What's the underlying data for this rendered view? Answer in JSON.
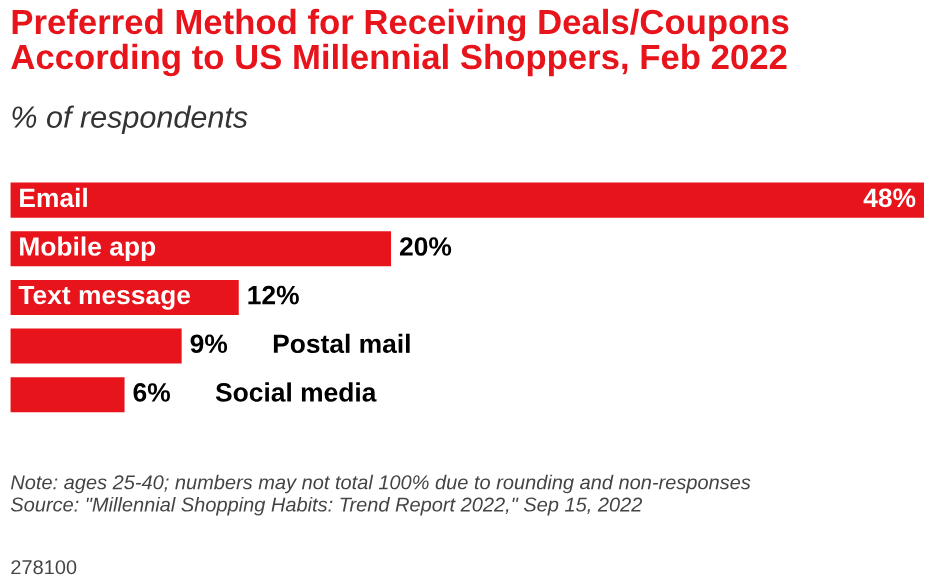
{
  "chart_data": {
    "type": "bar",
    "orientation": "horizontal",
    "title": "Preferred Method for Receiving Deals/Coupons\nAccording to US Millennial Shoppers, Feb 2022",
    "subtitle": "% of respondents",
    "categories": [
      "Email",
      "Mobile app",
      "Text message",
      "Postal mail",
      "Social media"
    ],
    "values": [
      48,
      20,
      12,
      9,
      6
    ],
    "color": "#e8141c",
    "value_labels": [
      "48%",
      "20%",
      "12%",
      "9%",
      "6%"
    ],
    "annotations": [
      "Note: ages 25-40; numbers may not total 100% due to rounding and non-responses\nSource: \"Millennial Shopping Habits: Trend Report 2022,\" Sep 15, 2022",
      "278100"
    ]
  }
}
